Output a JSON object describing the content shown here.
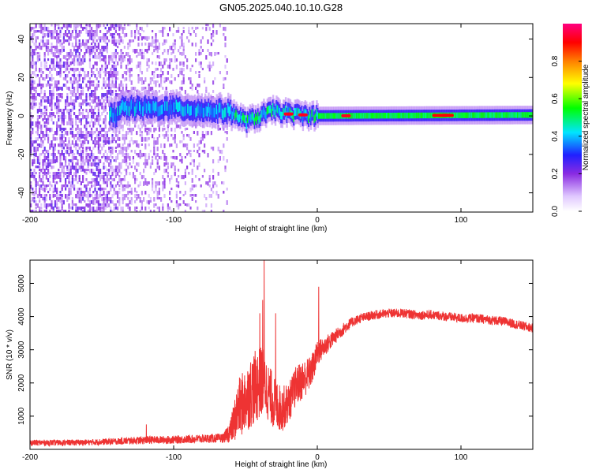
{
  "figure": {
    "title": "GN05.2025.040.10.10.G28"
  },
  "chart_data": [
    {
      "type": "heatmap",
      "title": "GN05.2025.040.10.10.G28",
      "xlabel": "Height of straight line (km)",
      "ylabel": "Frequency (Hz)",
      "xlim": [
        -200,
        150
      ],
      "ylim": [
        -50,
        48
      ],
      "x_ticks": [
        -200,
        -100,
        0,
        100
      ],
      "y_ticks": [
        -40,
        -20,
        0,
        20,
        40
      ],
      "colorbar": {
        "label": "Normalized spectral amplitude",
        "range": [
          0,
          1
        ],
        "ticks": [
          0.0,
          0.2,
          0.4,
          0.6,
          0.8
        ],
        "colormap": [
          "#ffffff",
          "#e0c8ff",
          "#8a2be2",
          "#2020ff",
          "#00e5ff",
          "#00ff00",
          "#ffff00",
          "#ff8000",
          "#ff0000",
          "#ff0080"
        ]
      },
      "features": {
        "noise_region_x": [
          -200,
          -63
        ],
        "noise_dense_x": [
          -200,
          -140
        ],
        "noise_faint_x": [
          -140,
          -63
        ],
        "signal_band": [
          {
            "x": -140,
            "freq": 4
          },
          {
            "x": -100,
            "freq": 4
          },
          {
            "x": -60,
            "freq": 2
          },
          {
            "x": -50,
            "freq": -3
          },
          {
            "x": -30,
            "freq": 3
          },
          {
            "x": -20,
            "freq": 1
          },
          {
            "x": 0,
            "freq": 0
          },
          {
            "x": 150,
            "freq": 0.5
          }
        ],
        "peak_x": [
          -20,
          -10,
          20,
          90
        ]
      }
    },
    {
      "type": "line",
      "xlabel": "Height of straight line (km)",
      "ylabel": "SNR (10 * v/v)",
      "xlim": [
        -200,
        150
      ],
      "ylim": [
        0,
        5700
      ],
      "x_ticks": [
        -200,
        -100,
        0,
        100
      ],
      "y_ticks": [
        1000,
        2000,
        3000,
        4000,
        5000
      ],
      "series": [
        {
          "color": "#ee3333",
          "x": [
            -200,
            -180,
            -160,
            -140,
            -120,
            -100,
            -80,
            -65,
            -60,
            -55,
            -50,
            -45,
            -40,
            -37,
            -35,
            -30,
            -25,
            -20,
            -15,
            -10,
            -5,
            -2,
            0,
            5,
            10,
            15,
            20,
            25,
            30,
            40,
            50,
            60,
            70,
            80,
            90,
            100,
            110,
            120,
            130,
            140,
            150
          ],
          "mean": [
            200,
            200,
            210,
            240,
            280,
            290,
            320,
            340,
            600,
            1200,
            1500,
            1800,
            2000,
            2100,
            1800,
            1400,
            1200,
            1400,
            1900,
            2100,
            2300,
            2600,
            2900,
            3100,
            3300,
            3500,
            3700,
            3850,
            3950,
            4050,
            4100,
            4100,
            4050,
            4050,
            4000,
            3950,
            3950,
            3900,
            3850,
            3750,
            3650
          ],
          "noise": [
            90,
            90,
            90,
            100,
            120,
            120,
            130,
            140,
            400,
            900,
            1000,
            1100,
            1100,
            1000,
            900,
            800,
            700,
            600,
            600,
            600,
            500,
            450,
            400,
            300,
            250,
            200,
            180,
            150,
            140,
            140,
            140,
            140,
            140,
            140,
            140,
            140,
            140,
            140,
            140,
            140,
            140
          ],
          "spikes": [
            {
              "x": -37,
              "y": 5700
            },
            {
              "x": -40,
              "y": 4100
            },
            {
              "x": -38,
              "y": 4500
            },
            {
              "x": -29,
              "y": 4100
            },
            {
              "x": 1,
              "y": 4900
            },
            {
              "x": -119,
              "y": 750
            }
          ]
        }
      ]
    }
  ]
}
